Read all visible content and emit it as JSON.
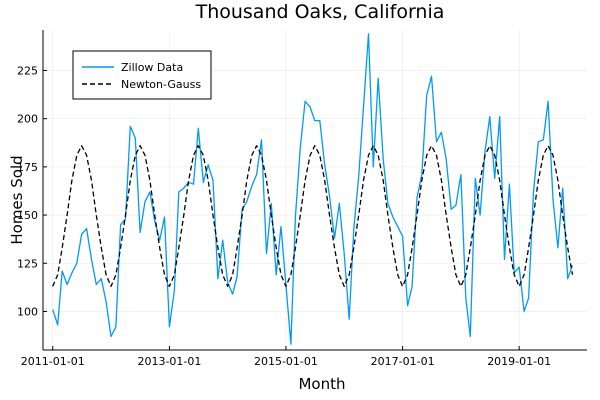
{
  "chart_data": {
    "type": "line",
    "title": "Thousand Oaks, California",
    "xlabel": "Month",
    "ylabel": "Homes Sold",
    "x_ticks": [
      "2011-01-01",
      "2013-01-01",
      "2015-01-01",
      "2017-01-01",
      "2019-01-01"
    ],
    "y_ticks": [
      100,
      125,
      150,
      175,
      200,
      225
    ],
    "xlim": [
      "2010-11-01",
      "2020-03-01"
    ],
    "ylim": [
      80,
      246
    ],
    "grid": true,
    "legend_position": "top-left",
    "series": [
      {
        "name": "Zillow Data",
        "color": "#009AFA",
        "style": "solid",
        "x": [
          "2011-01-01",
          "2011-02-01",
          "2011-03-01",
          "2011-04-01",
          "2011-05-01",
          "2011-06-01",
          "2011-07-01",
          "2011-08-01",
          "2011-09-01",
          "2011-10-01",
          "2011-11-01",
          "2011-12-01",
          "2012-01-01",
          "2012-02-01",
          "2012-03-01",
          "2012-04-01",
          "2012-05-01",
          "2012-06-01",
          "2012-07-01",
          "2012-08-01",
          "2012-09-01",
          "2012-10-01",
          "2012-11-01",
          "2012-12-01",
          "2013-01-01",
          "2013-02-01",
          "2013-03-01",
          "2013-04-01",
          "2013-05-01",
          "2013-06-01",
          "2013-07-01",
          "2013-08-01",
          "2013-09-01",
          "2013-10-01",
          "2013-11-01",
          "2013-12-01",
          "2014-01-01",
          "2014-02-01",
          "2014-03-01",
          "2014-04-01",
          "2014-05-01",
          "2014-06-01",
          "2014-07-01",
          "2014-08-01",
          "2014-09-01",
          "2014-10-01",
          "2014-11-01",
          "2014-12-01",
          "2015-01-01",
          "2015-02-01",
          "2015-03-01",
          "2015-04-01",
          "2015-05-01",
          "2015-06-01",
          "2015-07-01",
          "2015-08-01",
          "2015-09-01",
          "2015-10-01",
          "2015-11-01",
          "2015-12-01",
          "2016-01-01",
          "2016-02-01",
          "2016-03-01",
          "2016-04-01",
          "2016-05-01",
          "2016-06-01",
          "2016-07-01",
          "2016-08-01",
          "2016-09-01",
          "2016-10-01",
          "2016-11-01",
          "2016-12-01",
          "2017-01-01",
          "2017-02-01",
          "2017-03-01",
          "2017-04-01",
          "2017-05-01",
          "2017-06-01",
          "2017-07-01",
          "2017-08-01",
          "2017-09-01",
          "2017-10-01",
          "2017-11-01",
          "2017-12-01",
          "2018-01-01",
          "2018-02-01",
          "2018-03-01",
          "2018-04-01",
          "2018-05-01",
          "2018-06-01",
          "2018-07-01",
          "2018-08-01",
          "2018-09-01",
          "2018-10-01",
          "2018-11-01",
          "2018-12-01",
          "2019-01-01",
          "2019-02-01",
          "2019-03-01",
          "2019-04-01",
          "2019-05-01",
          "2019-06-01",
          "2019-07-01",
          "2019-08-01",
          "2019-09-01",
          "2019-10-01",
          "2019-11-01",
          "2019-12-01"
        ],
        "y": [
          101,
          93,
          121,
          114,
          120,
          125,
          140,
          143,
          127,
          114,
          117,
          105,
          87,
          92,
          145,
          148,
          196,
          190,
          141,
          157,
          162,
          147,
          137,
          149,
          92,
          111,
          162,
          164,
          167,
          166,
          195,
          167,
          176,
          168,
          117,
          137,
          115,
          109,
          118,
          153,
          157,
          165,
          171,
          189,
          130,
          156,
          119,
          144,
          114,
          83,
          149,
          185,
          209,
          206,
          199,
          199,
          176,
          160,
          138,
          156,
          130,
          96,
          143,
          170,
          206,
          244,
          175,
          221,
          179,
          156,
          149,
          144,
          139,
          103,
          113,
          159,
          171,
          212,
          222,
          188,
          193,
          179,
          153,
          155,
          171,
          107,
          87,
          169,
          150,
          183,
          201,
          169,
          201,
          127,
          166,
          120,
          123,
          100,
          107,
          162,
          188,
          189,
          209,
          158,
          133,
          164,
          117,
          124
        ]
      },
      {
        "name": "Newton-Gauss",
        "color": "#000000",
        "style": "dashed",
        "x": [
          "2011-01-01",
          "2011-02-01",
          "2011-03-01",
          "2011-04-01",
          "2011-05-01",
          "2011-06-01",
          "2011-07-01",
          "2011-08-01",
          "2011-09-01",
          "2011-10-01",
          "2011-11-01",
          "2011-12-01",
          "2012-01-01",
          "2012-02-01",
          "2012-03-01",
          "2012-04-01",
          "2012-05-01",
          "2012-06-01",
          "2012-07-01",
          "2012-08-01",
          "2012-09-01",
          "2012-10-01",
          "2012-11-01",
          "2012-12-01",
          "2013-01-01",
          "2013-02-01",
          "2013-03-01",
          "2013-04-01",
          "2013-05-01",
          "2013-06-01",
          "2013-07-01",
          "2013-08-01",
          "2013-09-01",
          "2013-10-01",
          "2013-11-01",
          "2013-12-01",
          "2014-01-01",
          "2014-02-01",
          "2014-03-01",
          "2014-04-01",
          "2014-05-01",
          "2014-06-01",
          "2014-07-01",
          "2014-08-01",
          "2014-09-01",
          "2014-10-01",
          "2014-11-01",
          "2014-12-01",
          "2015-01-01",
          "2015-02-01",
          "2015-03-01",
          "2015-04-01",
          "2015-05-01",
          "2015-06-01",
          "2015-07-01",
          "2015-08-01",
          "2015-09-01",
          "2015-10-01",
          "2015-11-01",
          "2015-12-01",
          "2016-01-01",
          "2016-02-01",
          "2016-03-01",
          "2016-04-01",
          "2016-05-01",
          "2016-06-01",
          "2016-07-01",
          "2016-08-01",
          "2016-09-01",
          "2016-10-01",
          "2016-11-01",
          "2016-12-01",
          "2017-01-01",
          "2017-02-01",
          "2017-03-01",
          "2017-04-01",
          "2017-05-01",
          "2017-06-01",
          "2017-07-01",
          "2017-08-01",
          "2017-09-01",
          "2017-10-01",
          "2017-11-01",
          "2017-12-01",
          "2018-01-01",
          "2018-02-01",
          "2018-03-01",
          "2018-04-01",
          "2018-05-01",
          "2018-06-01",
          "2018-07-01",
          "2018-08-01",
          "2018-09-01",
          "2018-10-01",
          "2018-11-01",
          "2018-12-01",
          "2019-01-01",
          "2019-02-01",
          "2019-03-01",
          "2019-04-01",
          "2019-05-01",
          "2019-06-01",
          "2019-07-01",
          "2019-08-01",
          "2019-09-01",
          "2019-10-01",
          "2019-11-01",
          "2019-12-01"
        ],
        "y": [
          113,
          119,
          133,
          150,
          168,
          181,
          186,
          181,
          168,
          150,
          133,
          119,
          113,
          119,
          133,
          150,
          168,
          181,
          186,
          181,
          168,
          150,
          133,
          119,
          113,
          119,
          133,
          150,
          168,
          181,
          186,
          181,
          168,
          150,
          133,
          119,
          113,
          119,
          133,
          150,
          168,
          181,
          186,
          181,
          168,
          150,
          133,
          119,
          113,
          119,
          133,
          150,
          168,
          181,
          186,
          181,
          168,
          150,
          133,
          119,
          113,
          119,
          133,
          150,
          168,
          181,
          186,
          181,
          168,
          150,
          133,
          119,
          113,
          119,
          133,
          150,
          168,
          181,
          186,
          181,
          168,
          150,
          133,
          119,
          113,
          119,
          133,
          150,
          168,
          181,
          186,
          181,
          168,
          150,
          133,
          119,
          113,
          119,
          133,
          150,
          168,
          181,
          186,
          181,
          168,
          150,
          133,
          119
        ]
      }
    ]
  }
}
